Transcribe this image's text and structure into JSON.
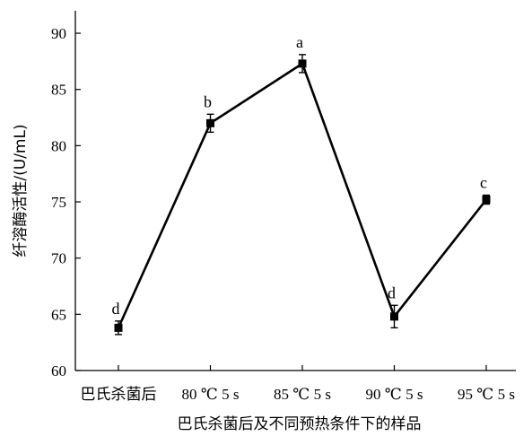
{
  "chart_data": {
    "type": "line",
    "xlabel": "巴氏杀菌后及不同预热条件下的样品",
    "ylabel": "纤溶酶活性/(U/mL)",
    "categories": [
      "巴氏杀菌后",
      "80 ℃ 5 s",
      "85 ℃ 5 s",
      "90 ℃ 5 s",
      "95 ℃ 5 s"
    ],
    "ylim": [
      60,
      92
    ],
    "yticks": [
      60,
      65,
      70,
      75,
      80,
      85,
      90
    ],
    "grid": false,
    "series": [
      {
        "values": [
          63.8,
          82.0,
          87.3,
          64.8,
          75.2
        ],
        "errors": [
          0.6,
          0.8,
          0.8,
          1.0,
          0.4
        ],
        "labels": [
          "d",
          "b",
          "a",
          "d",
          "c"
        ],
        "color": "#000000",
        "marker": "square"
      }
    ]
  }
}
